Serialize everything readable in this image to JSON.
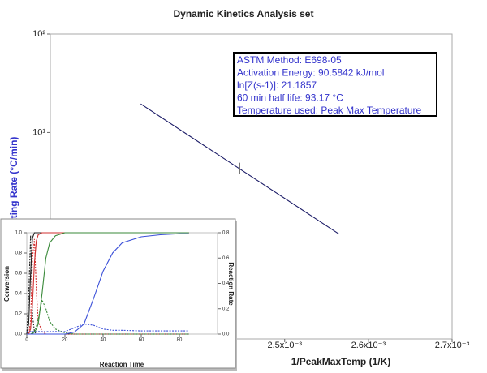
{
  "chart_data": [
    {
      "type": "line",
      "title": "Dynamic Kinetics Analysis set",
      "xlabel": "1/PeakMaxTemp  (1/K)",
      "ylabel": "Heating Rate  (°C/min)",
      "ylog": true,
      "xlim": [
        0.00222,
        0.0027
      ],
      "ylim": [
        0.08,
        100
      ],
      "xticks": [
        {
          "value": 0.0025,
          "label": "2.5x10⁻³"
        },
        {
          "value": 0.0026,
          "label": "2.6x10⁻³"
        },
        {
          "value": 0.0027,
          "label": "2.7x10⁻³"
        }
      ],
      "yticks": [
        {
          "value": 10,
          "label": "10¹"
        },
        {
          "value": 100,
          "label": "10²"
        }
      ],
      "x": [
        0.002328,
        0.002565
      ],
      "values": [
        19.5,
        0.93
      ],
      "color": "#1a1a66",
      "markers": {
        "x": [
          0.002446
        ],
        "values": [
          4.32
        ]
      },
      "annotation": [
        "ASTM Method: E698-05",
        "Activation Energy: 90.5842 kJ/mol",
        "ln[Z(s-1)]: 21.1857",
        "60 min half life: 93.17 °C",
        "Temperature used: Peak Max Temperature"
      ]
    },
    {
      "type": "line",
      "xlabel": "Reaction Time",
      "ylabel": "Conversion",
      "y2label": "Reaction Rate",
      "xlim": [
        0,
        100
      ],
      "xticks": [
        0,
        20,
        40,
        60,
        80
      ],
      "ylim": [
        0,
        1
      ],
      "yticks": [
        {
          "value": 0,
          "label": "0.0"
        },
        {
          "value": 0.2,
          "label": "0.2"
        },
        {
          "value": 0.4,
          "label": "0.4"
        },
        {
          "value": 0.6,
          "label": "0.6"
        },
        {
          "value": 0.8,
          "label": "0.8"
        },
        {
          "value": 1,
          "label": "1.0"
        }
      ],
      "y2lim": [
        0,
        0.8
      ],
      "y2ticks": [
        {
          "value": 0,
          "label": "0.0"
        },
        {
          "value": 0.2,
          "label": "0.2"
        },
        {
          "value": 0.4,
          "label": "0.4"
        },
        {
          "value": 0.6,
          "label": "0.6"
        },
        {
          "value": 0.8,
          "label": "0.8"
        }
      ],
      "x": [
        0,
        1,
        2,
        3,
        4,
        5,
        6,
        8,
        10,
        12,
        15,
        20,
        25,
        30,
        35,
        40,
        45,
        50,
        60,
        70,
        80,
        85
      ],
      "series": [
        {
          "color": "#222222",
          "values": [
            0,
            0.1,
            0.6,
            0.95,
            1,
            1,
            1,
            1,
            1,
            1,
            1,
            1,
            1,
            1,
            1,
            1,
            1,
            1,
            1,
            1,
            1,
            1
          ]
        },
        {
          "color": "#222222",
          "dash": true,
          "axis": "y2",
          "values": [
            0,
            0.3,
            0.78,
            0.15,
            0.02,
            0,
            0,
            0,
            0,
            0,
            0,
            0,
            0,
            0,
            0,
            0,
            0,
            0,
            0,
            0,
            0,
            0
          ]
        },
        {
          "color": "#d03030",
          "values": [
            0,
            0,
            0.05,
            0.3,
            0.7,
            0.92,
            0.98,
            1,
            1,
            1,
            1,
            1,
            1,
            1,
            1,
            1,
            1,
            1,
            1,
            1,
            1,
            1
          ]
        },
        {
          "color": "#d03030",
          "dash": true,
          "axis": "y2",
          "values": [
            0,
            0,
            0.1,
            0.6,
            0.75,
            0.35,
            0.1,
            0.02,
            0,
            0,
            0,
            0,
            0,
            0,
            0,
            0,
            0,
            0,
            0,
            0,
            0,
            0
          ]
        },
        {
          "color": "#3a8a3a",
          "values": [
            0,
            0,
            0,
            0.01,
            0.02,
            0.05,
            0.1,
            0.4,
            0.75,
            0.9,
            0.97,
            1,
            1,
            1,
            1,
            1,
            1,
            1,
            1,
            1,
            1,
            1
          ]
        },
        {
          "color": "#3a8a3a",
          "dash": true,
          "axis": "y2",
          "values": [
            0,
            0,
            0,
            0,
            0.02,
            0.06,
            0.12,
            0.27,
            0.2,
            0.1,
            0.04,
            0.01,
            0,
            0,
            0,
            0,
            0,
            0,
            0,
            0,
            0,
            0
          ]
        },
        {
          "color": "#3a4fd8",
          "values": [
            0,
            0,
            0,
            0,
            0,
            0,
            0,
            0,
            0,
            0,
            0,
            0,
            0.02,
            0.1,
            0.35,
            0.62,
            0.8,
            0.9,
            0.96,
            0.98,
            0.99,
            0.99
          ]
        },
        {
          "color": "#3a4fd8",
          "dash": true,
          "axis": "y2",
          "values": [
            0.02,
            0.02,
            0.02,
            0.02,
            0.02,
            0.02,
            0.02,
            0.02,
            0.02,
            0.02,
            0.02,
            0.02,
            0.05,
            0.08,
            0.07,
            0.04,
            0.03,
            0.03,
            0.025,
            0.025,
            0.025,
            0.025
          ]
        }
      ]
    }
  ]
}
